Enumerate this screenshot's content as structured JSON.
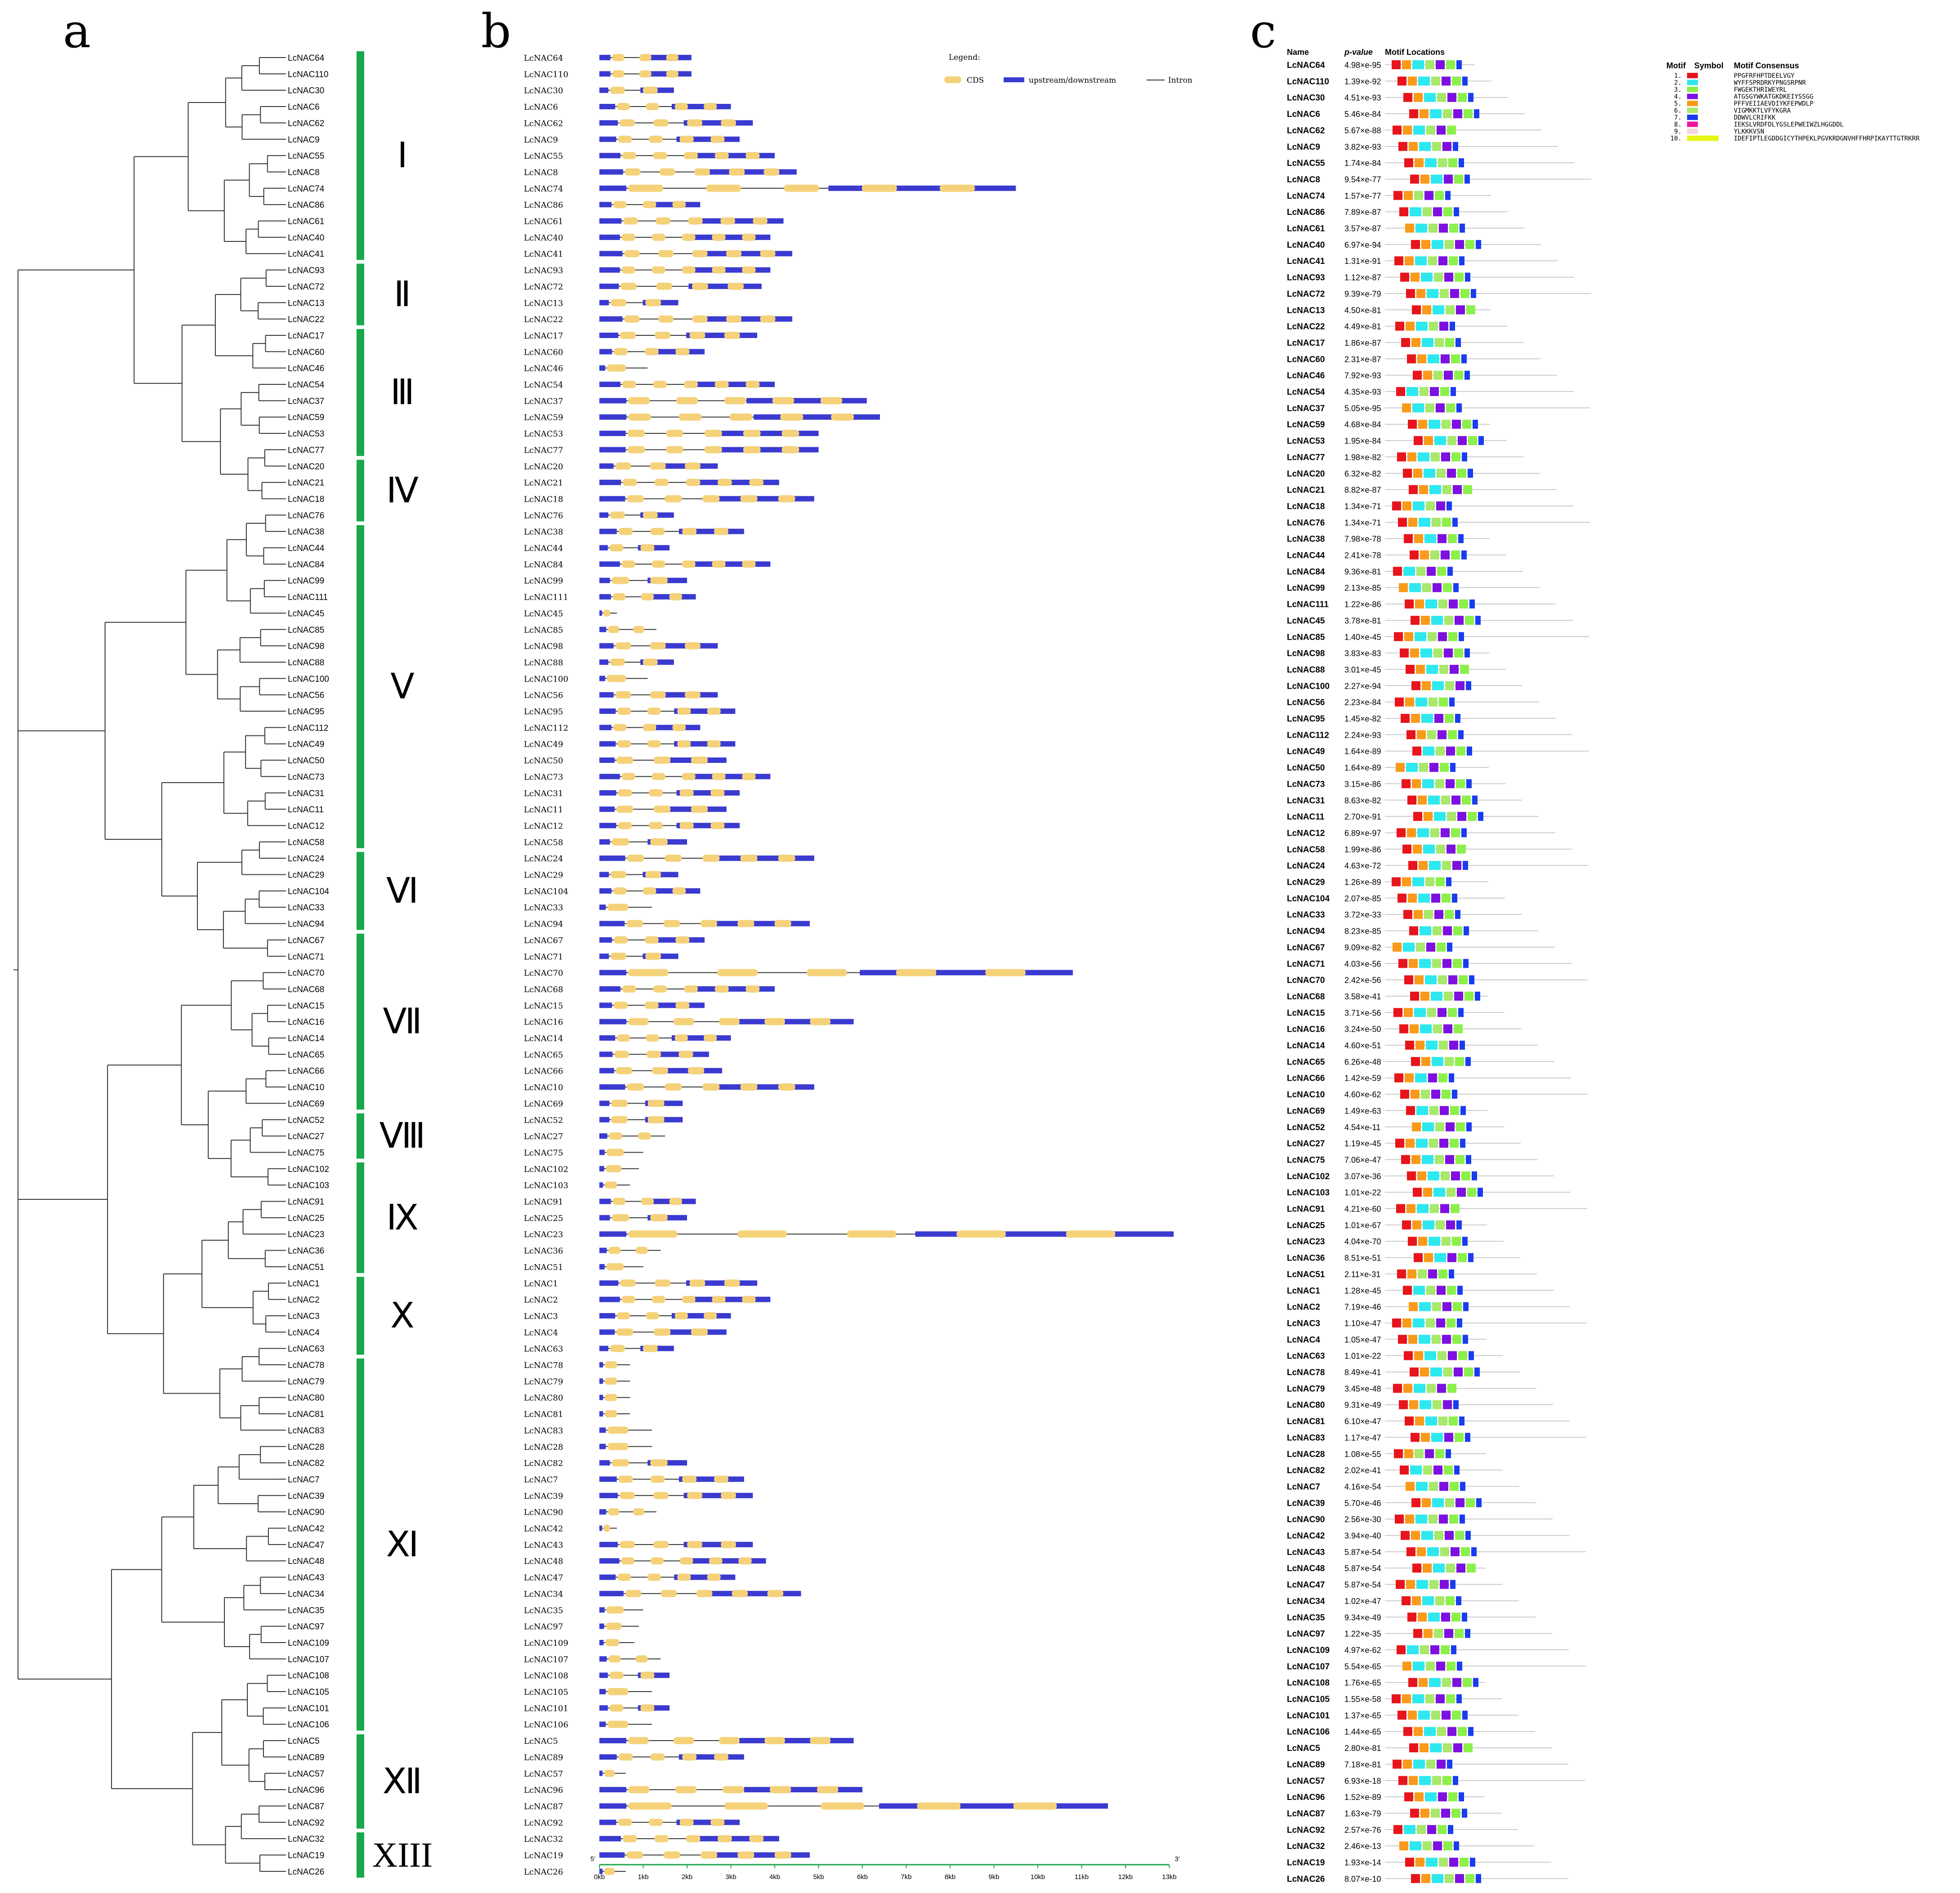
{
  "panels": {
    "a": "a",
    "b": "b",
    "c": "c"
  },
  "genes": [
    "LcNAC64",
    "LcNAC110",
    "LcNAC30",
    "LcNAC6",
    "LcNAC62",
    "LcNAC9",
    "LcNAC55",
    "LcNAC8",
    "LcNAC74",
    "LcNAC86",
    "LcNAC61",
    "LcNAC40",
    "LcNAC41",
    "LcNAC93",
    "LcNAC72",
    "LcNAC13",
    "LcNAC22",
    "LcNAC17",
    "LcNAC60",
    "LcNAC46",
    "LcNAC54",
    "LcNAC37",
    "LcNAC59",
    "LcNAC53",
    "LcNAC77",
    "LcNAC20",
    "LcNAC21",
    "LcNAC18",
    "LcNAC76",
    "LcNAC38",
    "LcNAC44",
    "LcNAC84",
    "LcNAC99",
    "LcNAC111",
    "LcNAC45",
    "LcNAC85",
    "LcNAC98",
    "LcNAC88",
    "LcNAC100",
    "LcNAC56",
    "LcNAC95",
    "LcNAC112",
    "LcNAC49",
    "LcNAC50",
    "LcNAC73",
    "LcNAC31",
    "LcNAC11",
    "LcNAC12",
    "LcNAC58",
    "LcNAC24",
    "LcNAC29",
    "LcNAC104",
    "LcNAC33",
    "LcNAC94",
    "LcNAC67",
    "LcNAC71",
    "LcNAC70",
    "LcNAC68",
    "LcNAC15",
    "LcNAC16",
    "LcNAC14",
    "LcNAC65",
    "LcNAC66",
    "LcNAC10",
    "LcNAC69",
    "LcNAC52",
    "LcNAC27",
    "LcNAC75",
    "LcNAC102",
    "LcNAC103",
    "LcNAC91",
    "LcNAC25",
    "LcNAC23",
    "LcNAC36",
    "LcNAC51",
    "LcNAC1",
    "LcNAC2",
    "LcNAC3",
    "LcNAC4",
    "LcNAC63",
    "LcNAC78",
    "LcNAC79",
    "LcNAC80",
    "LcNAC81",
    "LcNAC83",
    "LcNAC28",
    "LcNAC82",
    "LcNAC7",
    "LcNAC39",
    "LcNAC90",
    "LcNAC42",
    "LcNAC47",
    "LcNAC48",
    "LcNAC43",
    "LcNAC34",
    "LcNAC35",
    "LcNAC97",
    "LcNAC109",
    "LcNAC107",
    "LcNAC108",
    "LcNAC105",
    "LcNAC101",
    "LcNAC106",
    "LcNAC5",
    "LcNAC89",
    "LcNAC57",
    "LcNAC96",
    "LcNAC87",
    "LcNAC92",
    "LcNAC32",
    "LcNAC19",
    "LcNAC26"
  ],
  "genes_b": [
    "LcNAC64",
    "LcNAC110",
    "LcNAC30",
    "LcNAC6",
    "LcNAC62",
    "LcNAC9",
    "LcNAC55",
    "LcNAC8",
    "LcNAC74",
    "LcNAC86",
    "LcNAC61",
    "LcNAC40",
    "LcNAC41",
    "LcNAC93",
    "LcNAC72",
    "LcNAC13",
    "LcNAC22",
    "LcNAC17",
    "LcNAC60",
    "LcNAC46",
    "LcNAC54",
    "LcNAC37",
    "LcNAC59",
    "LcNAC53",
    "LcNAC77",
    "LcNAC20",
    "LcNAC21",
    "LcNAC18",
    "LcNAC76",
    "LcNAC38",
    "LcNAC44",
    "LcNAC84",
    "LcNAC99",
    "LcNAC111",
    "LcNAC45",
    "LcNAC85",
    "LcNAC98",
    "LcNAC88",
    "LcNAC100",
    "LcNAC56",
    "LcNAC95",
    "LcNAC112",
    "LcNAC49",
    "LcNAC50",
    "LcNAC73",
    "LcNAC31",
    "LcNAC11",
    "LcNAC12",
    "LcNAC58",
    "LcNAC24",
    "LcNAC29",
    "LcNAC104",
    "LcNAC33",
    "LcNAC94",
    "LcNAC67",
    "LcNAC71",
    "LcNAC70",
    "LcNAC68",
    "LcNAC15",
    "LcNAC16",
    "LcNAC14",
    "LcNAC65",
    "LcNAC66",
    "LcNAC10",
    "LcNAC69",
    "LcNAC52",
    "LcNAC27",
    "LcNAC75",
    "LcNAC102",
    "LcNAC103",
    "LcNAC91",
    "LcNAC25",
    "LcNAC23",
    "LcNAC36",
    "LcNAC51",
    "LcNAC1",
    "LcNAC2",
    "LcNAC3",
    "LcNAC4",
    "LcNAC63",
    "LcNAC78",
    "LcNAC79",
    "LcNAC80",
    "LcNAC81",
    "LcNAC83",
    "LcNAC28",
    "LcNAC82",
    "LcNAC7",
    "LcNAC39",
    "LcNAC90",
    "LcNAC42",
    "LcNAC43",
    "LcNAC48",
    "LcNAC47",
    "LcNAC34",
    "LcNAC35",
    "LcNAC97",
    "LcNAC109",
    "LcNAC107",
    "LcNAC108",
    "LcNAC105",
    "LcNAC101",
    "LcNAC106",
    "LcNAC5",
    "LcNAC89",
    "LcNAC57",
    "LcNAC96",
    "LcNAC87",
    "LcNAC92",
    "LcNAC32",
    "LcNAC19",
    "LcNAC26"
  ],
  "genes_c": [
    "LcNAC64",
    "LcNAC110",
    "LcNAC30",
    "LcNAC6",
    "LcNAC62",
    "LcNAC9",
    "LcNAC55",
    "LcNAC8",
    "LcNAC74",
    "LcNAC86",
    "LcNAC61",
    "LcNAC40",
    "LcNAC41",
    "LcNAC93",
    "LcNAC72",
    "LcNAC13",
    "LcNAC22",
    "LcNAC17",
    "LcNAC60",
    "LcNAC46",
    "LcNAC54",
    "LcNAC37",
    "LcNAC59",
    "LcNAC53",
    "LcNAC77",
    "LcNAC20",
    "LcNAC21",
    "LcNAC18",
    "LcNAC76",
    "LcNAC38",
    "LcNAC44",
    "LcNAC84",
    "LcNAC99",
    "LcNAC111",
    "LcNAC45",
    "LcNAC85",
    "LcNAC98",
    "LcNAC88",
    "LcNAC100",
    "LcNAC56",
    "LcNAC95",
    "LcNAC112",
    "LcNAC49",
    "LcNAC50",
    "LcNAC73",
    "LcNAC31",
    "LcNAC11",
    "LcNAC12",
    "LcNAC58",
    "LcNAC24",
    "LcNAC29",
    "LcNAC104",
    "LcNAC33",
    "LcNAC94",
    "LcNAC67",
    "LcNAC71",
    "LcNAC70",
    "LcNAC68",
    "LcNAC15",
    "LcNAC16",
    "LcNAC14",
    "LcNAC65",
    "LcNAC66",
    "LcNAC10",
    "LcNAC69",
    "LcNAC52",
    "LcNAC27",
    "LcNAC75",
    "LcNAC102",
    "LcNAC103",
    "LcNAC91",
    "LcNAC25",
    "LcNAC23",
    "LcNAC36",
    "LcNAC51",
    "LcNAC1",
    "LcNAC2",
    "LcNAC3",
    "LcNAC4",
    "LcNAC63",
    "LcNAC78",
    "LcNAC79",
    "LcNAC80",
    "LcNAC81",
    "LcNAC83",
    "LcNAC28",
    "LcNAC82",
    "LcNAC7",
    "LcNAC39",
    "LcNAC90",
    "LcNAC42",
    "LcNAC43",
    "LcNAC48",
    "LcNAC47",
    "LcNAC34",
    "LcNAC35",
    "LcNAC97",
    "LcNAC109",
    "LcNAC107",
    "LcNAC108",
    "LcNAC105",
    "LcNAC101",
    "LcNAC106",
    "LcNAC5",
    "LcNAC89",
    "LcNAC57",
    "LcNAC96",
    "LcNAC87",
    "LcNAC92",
    "LcNAC32",
    "LcNAC19",
    "LcNAC26"
  ],
  "gene_lengths_kb": [
    2.1,
    2.1,
    1.7,
    3.0,
    3.5,
    3.2,
    4.0,
    4.5,
    9.5,
    2.3,
    4.2,
    3.9,
    4.4,
    3.9,
    3.7,
    1.8,
    4.4,
    3.6,
    2.4,
    1.1,
    4.0,
    6.1,
    6.4,
    5.0,
    5.0,
    2.7,
    4.1,
    4.9,
    1.7,
    3.3,
    1.6,
    3.9,
    2.0,
    2.2,
    0.4,
    1.3,
    2.7,
    1.7,
    1.1,
    2.7,
    3.1,
    2.3,
    3.1,
    2.9,
    3.9,
    3.2,
    2.9,
    3.2,
    2.0,
    4.9,
    1.8,
    2.3,
    1.2,
    4.8,
    2.4,
    1.8,
    10.8,
    4.0,
    2.4,
    5.8,
    3.0,
    2.5,
    2.8,
    4.9,
    1.9,
    1.9,
    1.5,
    1.0,
    0.9,
    0.7,
    2.2,
    2.0,
    13.1,
    1.4,
    1.0,
    3.6,
    3.9,
    3.0,
    2.9,
    1.7,
    0.7,
    0.7,
    0.7,
    0.7,
    1.2,
    1.2,
    2.0,
    3.3,
    3.5,
    1.3,
    0.4,
    3.5,
    3.8,
    3.1,
    4.6,
    1.0,
    0.9,
    0.8,
    1.4,
    1.6,
    1.2,
    1.6,
    1.2,
    5.8,
    3.3,
    0.6,
    6.0,
    11.6,
    3.2,
    4.1,
    4.8,
    0.6
  ],
  "pvalues": [
    "4.98×e-95",
    "1.39×e-92",
    "4.51×e-93",
    "5.46×e-84",
    "5.67×e-88",
    "3.82×e-93",
    "1.74×e-84",
    "9.54×e-77",
    "1.57×e-77",
    "7.89×e-87",
    "3.57×e-87",
    "6.97×e-94",
    "1.31×e-91",
    "1.12×e-87",
    "9.39×e-79",
    "4.50×e-81",
    "4.49×e-81",
    "1.86×e-87",
    "2.31×e-87",
    "7.92×e-93",
    "4.35×e-93",
    "5.05×e-95",
    "4.68×e-84",
    "1.95×e-84",
    "1.98×e-82",
    "6.32×e-82",
    "8.82×e-87",
    "1.34×e-71",
    "1.34×e-71",
    "7.98×e-78",
    "2.41×e-78",
    "9.36×e-81",
    "2.13×e-85",
    "1.22×e-86",
    "3.78×e-81",
    "1.40×e-45",
    "3.83×e-83",
    "3.01×e-45",
    "2.27×e-94",
    "2.23×e-84",
    "1.45×e-82",
    "2.24×e-93",
    "1.64×e-89",
    "1.64×e-89",
    "3.15×e-86",
    "8.63×e-82",
    "2.70×e-91",
    "6.89×e-97",
    "1.99×e-86",
    "4.63×e-72",
    "1.26×e-89",
    "2.07×e-85",
    "3.72×e-33",
    "8.23×e-85",
    "9.09×e-82",
    "4.03×e-56",
    "2.42×e-56",
    "3.58×e-41",
    "3.71×e-56",
    "3.24×e-50",
    "4.60×e-51",
    "6.26×e-48",
    "1.42×e-59",
    "4.60×e-62",
    "1.49×e-63",
    "4.54×e-11",
    "1.19×e-45",
    "7.06×e-47",
    "3.07×e-36",
    "1.01×e-22",
    "4.21×e-60",
    "1.01×e-67",
    "4.04×e-70",
    "8.51×e-51",
    "2.11×e-31",
    "1.28×e-45",
    "7.19×e-46",
    "1.10×e-47",
    "1.05×e-47",
    "1.01×e-22",
    "8.49×e-41",
    "3.45×e-48",
    "9.31×e-49",
    "6.10×e-47",
    "1.17×e-47",
    "1.08×e-55",
    "2.02×e-41",
    "4.16×e-54",
    "5.70×e-46",
    "2.56×e-30",
    "3.94×e-40",
    "5.87×e-54",
    "5.87×e-54",
    "5.87×e-54",
    "1.02×e-47",
    "9.34×e-49",
    "1.22×e-35",
    "4.97×e-62",
    "5.54×e-65",
    "1.76×e-65",
    "1.55×e-58",
    "1.37×e-65",
    "1.44×e-65",
    "2.80×e-81",
    "7.18×e-81",
    "6.93×e-18",
    "1.52×e-89",
    "1.63×e-79",
    "2.57×e-76",
    "2.46×e-13",
    "1.93×e-14",
    "8.07×e-10"
  ],
  "clades": [
    {
      "label": "Ⅰ",
      "from": 0,
      "to": 12
    },
    {
      "label": "Ⅱ",
      "from": 13,
      "to": 16
    },
    {
      "label": "Ⅲ",
      "from": 17,
      "to": 24
    },
    {
      "label": "Ⅳ",
      "from": 25,
      "to": 28
    },
    {
      "label": "Ⅴ",
      "from": 29,
      "to": 48
    },
    {
      "label": "Ⅵ",
      "from": 49,
      "to": 53
    },
    {
      "label": "Ⅶ",
      "from": 54,
      "to": 64
    },
    {
      "label": "Ⅷ",
      "from": 65,
      "to": 67
    },
    {
      "label": "Ⅸ",
      "from": 68,
      "to": 74
    },
    {
      "label": "Ⅹ",
      "from": 75,
      "to": 79
    },
    {
      "label": "Ⅺ",
      "from": 80,
      "to": 102
    },
    {
      "label": "Ⅻ",
      "from": 103,
      "to": 108
    },
    {
      "label": "XIII",
      "from": 109,
      "to": 111
    }
  ],
  "legend_b": {
    "title": "Legend:",
    "cds": "CDS",
    "updown": "upstream/downstream",
    "intron": "Intron"
  },
  "axis_b": {
    "ticks": [
      "0kb",
      "1kb",
      "2kb",
      "3kb",
      "4kb",
      "5kb",
      "6kb",
      "7kb",
      "8kb",
      "9kb",
      "10kb",
      "11kb",
      "12kb",
      "13kb"
    ],
    "five": "5'",
    "three": "3'"
  },
  "motif_header": {
    "name": "Name",
    "pvalue": "p-value",
    "locations": "Motif Locations",
    "motif": "Motif",
    "symbol": "Symbol",
    "consensus": "Motif Consensus"
  },
  "motifs": [
    {
      "n": "1.",
      "color": "#e8141c",
      "seq": "PPGFRFHPTDEELVGY"
    },
    {
      "n": "2.",
      "color": "#2ee8f0",
      "seq": "WYFFSPRDRKYPNGSRPNR"
    },
    {
      "n": "3.",
      "color": "#8cf04a",
      "seq": "FWGEKTHRIWEYRL"
    },
    {
      "n": "4.",
      "color": "#7d10e0",
      "seq": "ATGSGYWKATGKDKEIYSSGG"
    },
    {
      "n": "5.",
      "color": "#fa9a1a",
      "seq": "PFFVEIIAEVDIYKFEPWDLP"
    },
    {
      "n": "6.",
      "color": "#a8e86a",
      "seq": "VIGMKKTLVFYKGRA"
    },
    {
      "n": "7.",
      "color": "#1a3cf0",
      "seq": "DDWVLCRIFKK"
    },
    {
      "n": "8.",
      "color": "#f016a0",
      "seq": "IEKSLVRDFDLYGSLEPWEIWZLHGGDDL"
    },
    {
      "n": "9.",
      "color": "#f3d6e0",
      "seq": "YLKKKVSN"
    },
    {
      "n": "10.",
      "color": "#e8f514",
      "seq": "IDEFIPTLEGDDGICYTHPEKLPGVKRDGNVHFFHRPIKAYTTGTRKRR"
    }
  ]
}
